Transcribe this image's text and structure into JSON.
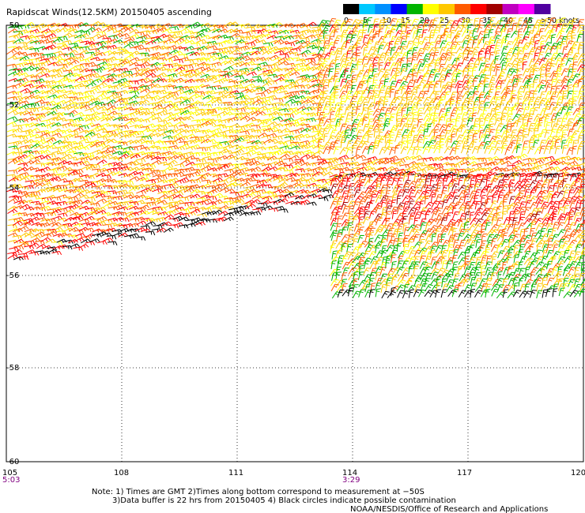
{
  "title": "Rapidscat Winds(12.5KM) 20150405 ascending",
  "legend": {
    "labels": [
      "0",
      "5",
      "10",
      "15",
      "20",
      "25",
      "30",
      "35",
      "40",
      "45",
      ">50 knots"
    ],
    "colors": [
      "#000000",
      "#00c8ff",
      "#0090ff",
      "#0000ff",
      "#00b400",
      "#ffff00",
      "#ffc800",
      "#ff5a00",
      "#ff0000",
      "#a00000",
      "#c000c0",
      "#ff00ff",
      "#5000a0"
    ]
  },
  "latitude_labels": [
    "-50",
    "-52",
    "-54",
    "-56",
    "-58",
    "-60"
  ],
  "longitude_labels": [
    "105",
    "108",
    "111",
    "114",
    "117",
    "120"
  ],
  "pass_times": [
    "5:03",
    "3:29"
  ],
  "notes": {
    "line1": "Note: 1) Times are GMT 2)Times along bottom correspond to measurement at −50S",
    "line2": "3)Data buffer is 22 hrs from 20150405 4) Black circles indicate possible contamination",
    "credit": "NOAA/NESDIS/Office of Research and Applications"
  },
  "map": {
    "lon_range": [
      105,
      120
    ],
    "lat_range": [
      -60,
      -50
    ],
    "swaths": [
      {
        "name": "west-swath",
        "lon_range": [
          105,
          120
        ],
        "north_lat": -50,
        "south_edge": [
          [
            105,
            -55.7
          ],
          [
            113.3,
            -54.3
          ]
        ]
      },
      {
        "name": "east-swath",
        "lon_range": [
          113.4,
          120
        ],
        "north_lat": -53.8,
        "south_lat": -56.6
      }
    ]
  }
}
